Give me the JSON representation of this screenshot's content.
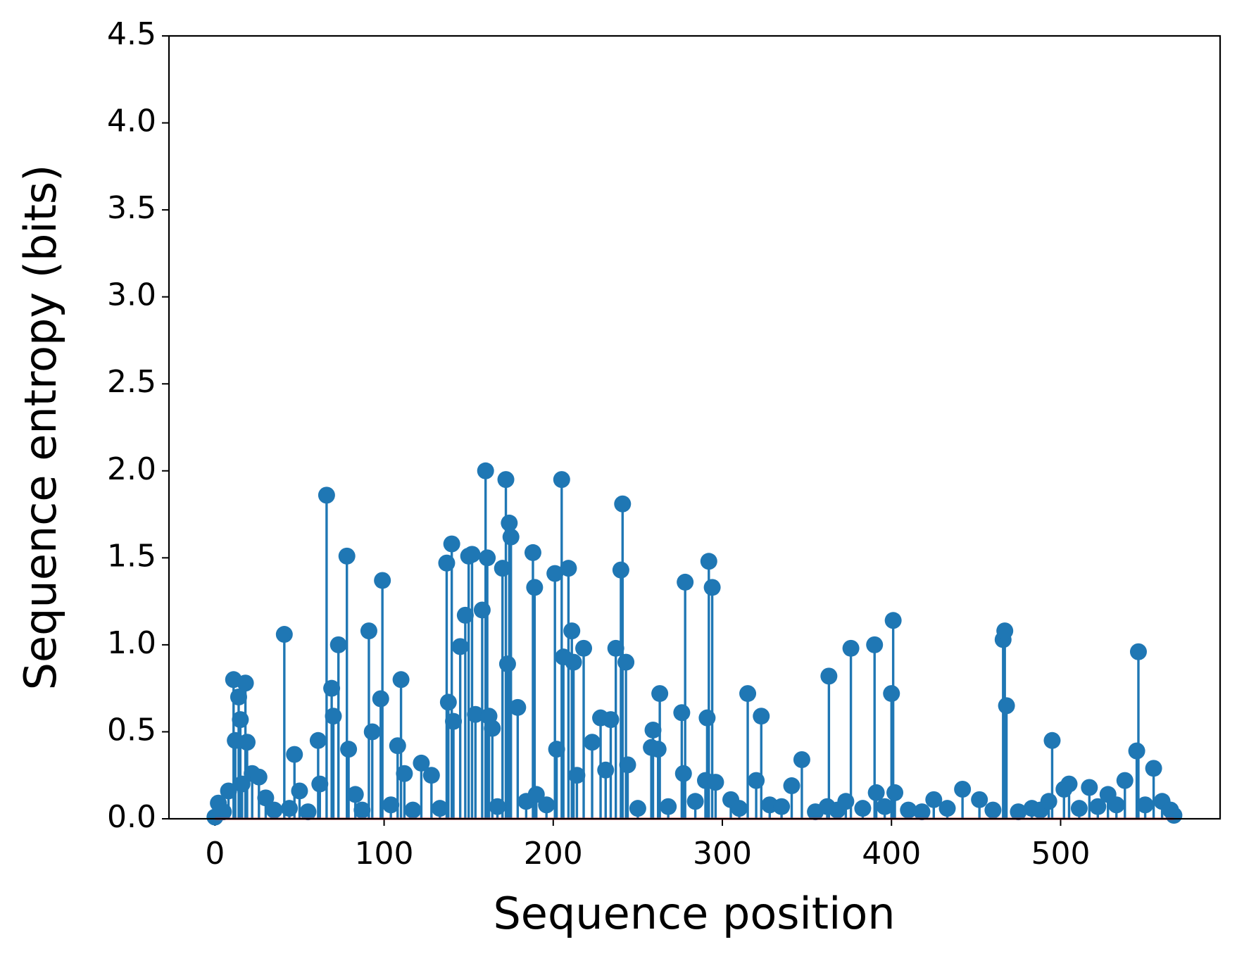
{
  "chart_data": {
    "type": "stem",
    "xlabel": "Sequence position",
    "ylabel": "Sequence entropy (bits)",
    "color": "#1f77b4",
    "baseline_color": "#d62728",
    "xlim": [
      -27.2,
      594.3
    ],
    "ylim": [
      0,
      4.5
    ],
    "xticks": [
      0,
      100,
      200,
      300,
      400,
      500
    ],
    "yticks": [
      {
        "value": 0,
        "label": "0.0"
      },
      0.5,
      {
        "value": 1,
        "label": "1.0"
      },
      1.5,
      {
        "value": 2,
        "label": "2.0"
      },
      2.5,
      {
        "value": 3,
        "label": "3.0"
      },
      3.5,
      {
        "value": 4,
        "label": "4.0"
      },
      4.5
    ],
    "x": [
      0,
      2,
      5,
      8,
      11,
      12,
      14,
      15,
      16,
      18,
      19,
      22,
      26,
      30,
      35,
      41,
      44,
      47,
      50,
      55,
      61,
      62,
      66,
      69,
      70,
      73,
      78,
      79,
      83,
      87,
      91,
      93,
      98,
      99,
      104,
      108,
      110,
      112,
      117,
      122,
      128,
      133,
      137,
      138,
      140,
      141,
      145,
      148,
      150,
      152,
      154,
      158,
      160,
      161,
      162,
      164,
      167,
      170,
      172,
      173,
      174,
      175,
      179,
      184,
      188,
      189,
      190,
      196,
      201,
      202,
      205,
      206,
      209,
      211,
      212,
      214,
      218,
      223,
      228,
      231,
      234,
      237,
      240,
      241,
      243,
      244,
      250,
      258,
      259,
      262,
      263,
      268,
      276,
      277,
      278,
      284,
      290,
      291,
      292,
      294,
      296,
      305,
      310,
      315,
      320,
      323,
      328,
      335,
      341,
      347,
      355,
      362,
      363,
      368,
      373,
      376,
      383,
      390,
      391,
      396,
      400,
      401,
      402,
      410,
      418,
      425,
      433,
      442,
      452,
      460,
      466,
      467,
      468,
      475,
      483,
      488,
      493,
      495,
      502,
      505,
      511,
      517,
      522,
      528,
      533,
      538,
      545,
      546,
      550,
      555,
      560,
      565,
      567
    ],
    "values": [
      0.01,
      0.09,
      0.04,
      0.16,
      0.8,
      0.45,
      0.7,
      0.57,
      0.2,
      0.78,
      0.44,
      0.26,
      0.24,
      0.12,
      0.05,
      1.06,
      0.06,
      0.37,
      0.16,
      0.04,
      0.45,
      0.2,
      1.86,
      0.75,
      0.59,
      1.0,
      1.51,
      0.4,
      0.14,
      0.05,
      1.08,
      0.5,
      0.69,
      1.37,
      0.08,
      0.42,
      0.8,
      0.26,
      0.05,
      0.32,
      0.25,
      0.06,
      1.47,
      0.67,
      1.58,
      0.56,
      0.99,
      1.17,
      1.51,
      1.52,
      0.6,
      1.2,
      2.0,
      1.5,
      0.59,
      0.52,
      0.07,
      1.44,
      1.95,
      0.89,
      1.7,
      1.62,
      0.64,
      0.1,
      1.53,
      1.33,
      0.14,
      0.08,
      1.41,
      0.4,
      1.95,
      0.93,
      1.44,
      1.08,
      0.9,
      0.25,
      0.98,
      0.44,
      0.58,
      0.28,
      0.57,
      0.98,
      1.43,
      1.81,
      0.9,
      0.31,
      0.06,
      0.41,
      0.51,
      0.4,
      0.72,
      0.07,
      0.61,
      0.26,
      1.36,
      0.1,
      0.22,
      0.58,
      1.48,
      1.33,
      0.21,
      0.11,
      0.06,
      0.72,
      0.22,
      0.59,
      0.08,
      0.07,
      0.19,
      0.34,
      0.04,
      0.07,
      0.82,
      0.05,
      0.1,
      0.98,
      0.06,
      1.0,
      0.15,
      0.07,
      0.72,
      1.14,
      0.15,
      0.05,
      0.04,
      0.11,
      0.06,
      0.17,
      0.11,
      0.05,
      1.03,
      1.08,
      0.65,
      0.04,
      0.06,
      0.05,
      0.1,
      0.45,
      0.17,
      0.2,
      0.06,
      0.18,
      0.07,
      0.14,
      0.08,
      0.22,
      0.39,
      0.96,
      0.08,
      0.29,
      0.1,
      0.05,
      0.02
    ]
  }
}
